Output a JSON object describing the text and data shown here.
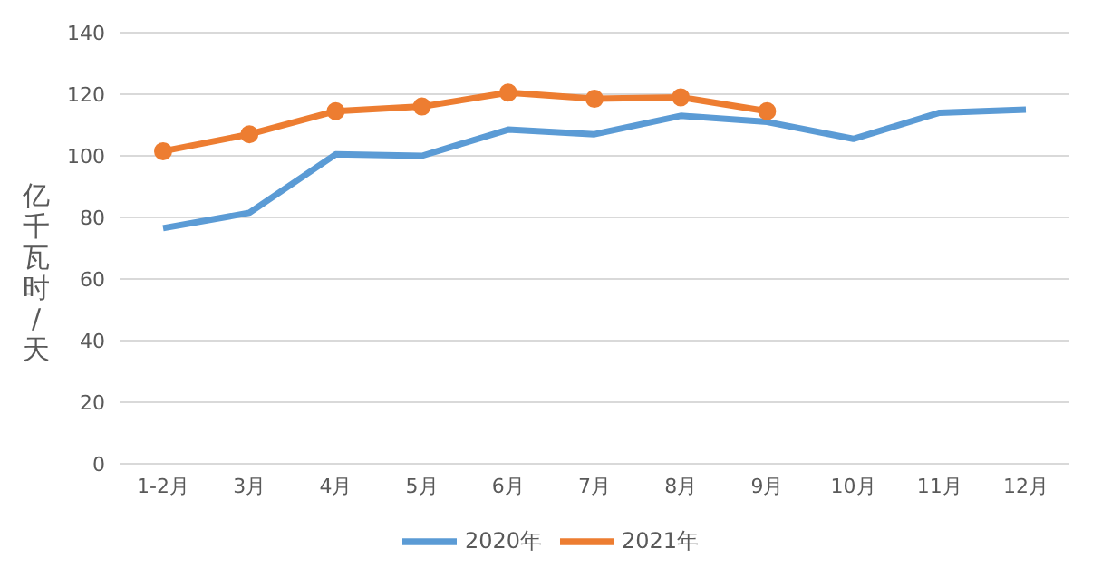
{
  "chart_data": {
    "type": "line",
    "ylabel": "亿千瓦时/天",
    "categories": [
      "1-2月",
      "3月",
      "4月",
      "5月",
      "6月",
      "7月",
      "8月",
      "9月",
      "10月",
      "11月",
      "12月"
    ],
    "series": [
      {
        "name": "2020年",
        "color": "#5b9bd5",
        "marker": "none",
        "values": [
          76.5,
          81.5,
          100.5,
          100,
          108.5,
          107,
          113,
          111,
          105.5,
          114,
          115
        ]
      },
      {
        "name": "2021年",
        "color": "#ed7d31",
        "marker": "circle",
        "values": [
          101.5,
          107,
          114.5,
          116,
          120.5,
          118.5,
          119,
          114.5,
          null,
          null,
          null
        ]
      }
    ],
    "ylim": [
      0,
      140
    ],
    "yticks": [
      0,
      20,
      40,
      60,
      80,
      100,
      120,
      140
    ],
    "grid": "y",
    "legend": "bottom"
  }
}
